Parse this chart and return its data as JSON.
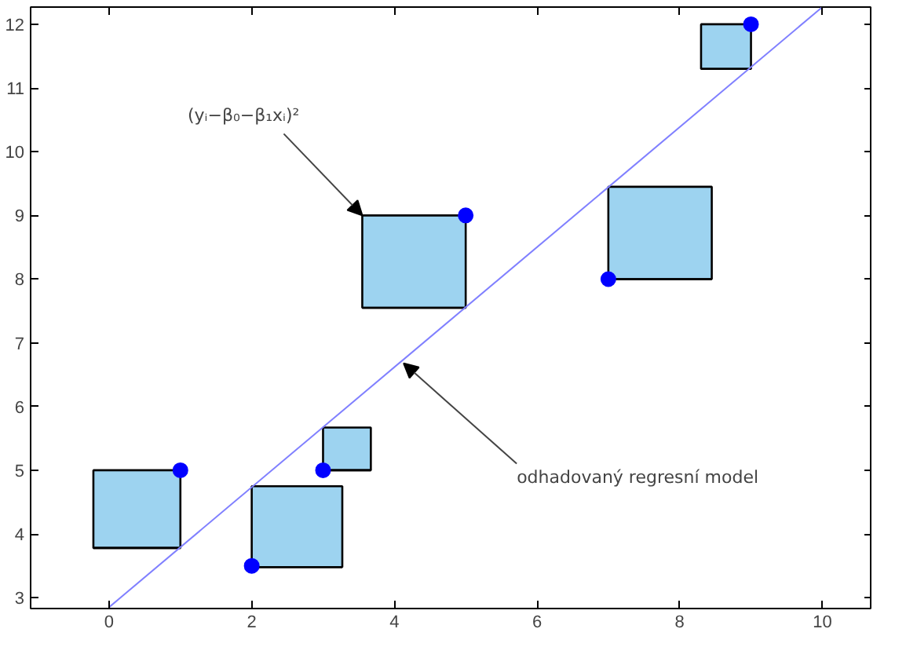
{
  "chart_data": {
    "type": "scatter",
    "xlim": [
      -1.1,
      10.7
    ],
    "ylim": [
      2.83,
      12.27
    ],
    "xticks": [
      0,
      2,
      4,
      6,
      8,
      10
    ],
    "yticks": [
      3,
      4,
      5,
      6,
      7,
      8,
      9,
      10,
      11,
      12
    ],
    "grid": false,
    "series": [
      {
        "type": "box",
        "color": "#9dd3f0",
        "x": [
          0.39,
          2.635,
          3.335,
          4.275,
          7.725,
          8.65
        ],
        "boxes": [
          {
            "low": 3.78,
            "q1": 3.78,
            "median": 3.78,
            "q3": 5,
            "high": 5
          },
          {
            "low": 3.48,
            "q1": 3.48,
            "median": 3.48,
            "q3": 4.75,
            "high": 4.75
          },
          {
            "low": 5,
            "q1": 5,
            "median": 5,
            "q3": 5.67,
            "high": 5.67
          },
          {
            "low": 7.55,
            "q1": 7.55,
            "median": 7.55,
            "q3": 9,
            "high": 9
          },
          {
            "low": 8,
            "q1": 8,
            "median": 8,
            "q3": 9.45,
            "high": 9.45
          },
          {
            "low": 11.3,
            "q1": 11.3,
            "median": 11.3,
            "q3": 12,
            "high": 12
          }
        ]
      },
      {
        "type": "line",
        "color": "#8080ff",
        "marker": "none",
        "x": [
          0,
          10
        ],
        "values": [
          2.85,
          12.27
        ]
      },
      {
        "color": "#0000ff",
        "marker": "circle",
        "x": [
          1,
          2,
          3,
          5,
          7,
          9
        ],
        "values": [
          5,
          3.5,
          5,
          9,
          8,
          12
        ]
      }
    ],
    "annotations": [
      {
        "text": "(yᵢ−β₀−β₁xᵢ)²",
        "x": 3.55,
        "y": 9
      },
      {
        "text": "odhadovaný regresní model",
        "x": 4.13,
        "y": 6.68
      }
    ]
  }
}
